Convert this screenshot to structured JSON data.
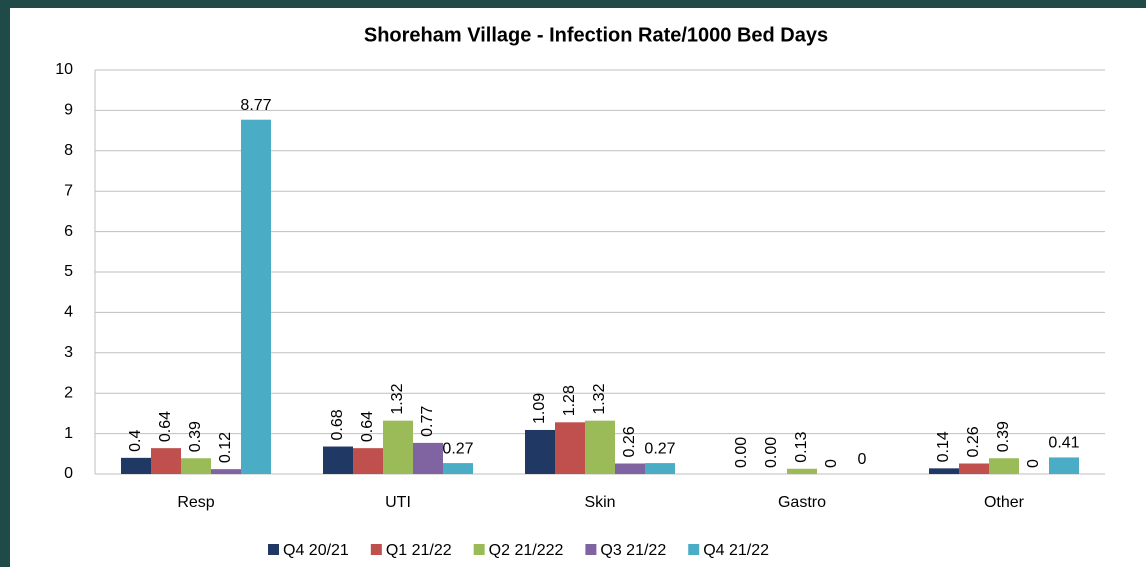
{
  "chart_data": {
    "type": "bar",
    "title": "Shoreham Village - Infection Rate/1000 Bed Days",
    "categories": [
      "Resp",
      "UTI",
      "Skin",
      "Gastro",
      "Other"
    ],
    "series": [
      {
        "name": "Q4 20/21",
        "color": "#1f3864",
        "values": [
          0.4,
          0.68,
          1.09,
          0,
          0.14
        ],
        "value_labels": [
          "0.4",
          "0.68",
          "1.09",
          "0.00",
          "0.14"
        ]
      },
      {
        "name": "Q1 21/22",
        "color": "#c0504d",
        "values": [
          0.64,
          0.64,
          1.28,
          0,
          0.26
        ],
        "value_labels": [
          "0.64",
          "0.64",
          "1.28",
          "0.00",
          "0.26"
        ]
      },
      {
        "name": "Q2 21/222",
        "color": "#9bbb59",
        "values": [
          0.39,
          1.32,
          1.32,
          0.13,
          0.39
        ]
      },
      {
        "name": "Q3 21/22",
        "color": "#8064a2",
        "values": [
          0.12,
          0.77,
          0.26,
          0,
          0
        ]
      },
      {
        "name": "Q4 21/22",
        "color": "#4bacc6",
        "values": [
          8.77,
          0.27,
          0.27,
          0,
          0.41
        ]
      }
    ],
    "ylim": [
      0,
      10
    ],
    "yticks": [
      0,
      1,
      2,
      3,
      4,
      5,
      6,
      7,
      8,
      9,
      10
    ],
    "grid": true,
    "legend": "bottom"
  }
}
